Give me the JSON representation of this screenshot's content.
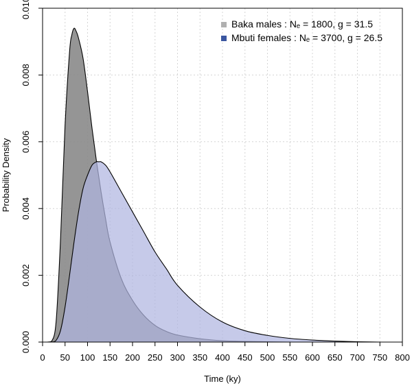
{
  "chart_data": {
    "type": "area",
    "title": "",
    "xlabel": "Time (ky)",
    "ylabel": "Probability Density",
    "xlim": [
      0,
      800
    ],
    "ylim": [
      0,
      0.01
    ],
    "grid": true,
    "legend_position": "top-right",
    "xticks": [
      0,
      50,
      100,
      150,
      200,
      250,
      300,
      350,
      400,
      450,
      500,
      550,
      600,
      650,
      700,
      750,
      800
    ],
    "xtick_labels": [
      "0",
      "50",
      "100",
      "150",
      "200",
      "250",
      "300",
      "350",
      "400",
      "450",
      "500",
      "550",
      "600",
      "650",
      "700",
      "750",
      "800"
    ],
    "yticks": [
      0,
      0.002,
      0.004,
      0.006,
      0.008,
      0.01
    ],
    "ytick_labels": [
      "0.000",
      "0.002",
      "0.004",
      "0.006",
      "0.008",
      "0.010"
    ],
    "series": [
      {
        "name": "Baka males",
        "legend_label": "Baka males :",
        "legend_params": "Nₑ = 1800, g = 31.5",
        "color": "#b0b0b0",
        "fill": "#8a8a8a",
        "x": [
          0,
          10,
          20,
          30,
          40,
          50,
          60,
          65,
          70,
          75,
          80,
          90,
          100,
          110,
          120,
          130,
          140,
          150,
          175,
          200,
          225,
          250,
          275,
          300,
          350,
          400,
          450,
          500,
          550,
          600,
          650,
          700,
          800
        ],
        "y": [
          0,
          0,
          2e-05,
          0.0006,
          0.0031,
          0.0065,
          0.0087,
          0.0092,
          0.0094,
          0.0093,
          0.0091,
          0.0085,
          0.0075,
          0.0064,
          0.0054,
          0.0045,
          0.0037,
          0.003,
          0.0019,
          0.00125,
          0.0008,
          0.0005,
          0.00032,
          0.00021,
          0.0001,
          4e-05,
          2e-05,
          1e-05,
          0,
          0,
          0,
          0,
          0
        ]
      },
      {
        "name": "Mbuti females",
        "legend_label": "Mbuti females :",
        "legend_params": "Nₑ = 3700, g = 26.5",
        "color": "#3a56a0",
        "fill": "#b0b5e0",
        "x": [
          0,
          20,
          30,
          40,
          50,
          60,
          70,
          80,
          90,
          100,
          110,
          120,
          125,
          130,
          140,
          150,
          175,
          200,
          225,
          250,
          275,
          300,
          350,
          400,
          450,
          500,
          550,
          600,
          650,
          700,
          750,
          800
        ],
        "y": [
          0,
          0,
          5e-05,
          0.00035,
          0.00105,
          0.002,
          0.003,
          0.0039,
          0.0046,
          0.005,
          0.0053,
          0.0054,
          0.0054,
          0.0054,
          0.0053,
          0.0051,
          0.0045,
          0.0039,
          0.0033,
          0.0027,
          0.0022,
          0.0017,
          0.00105,
          0.0006,
          0.00034,
          0.0002,
          0.00011,
          6e-05,
          3e-05,
          1e-05,
          0,
          0
        ]
      }
    ]
  }
}
